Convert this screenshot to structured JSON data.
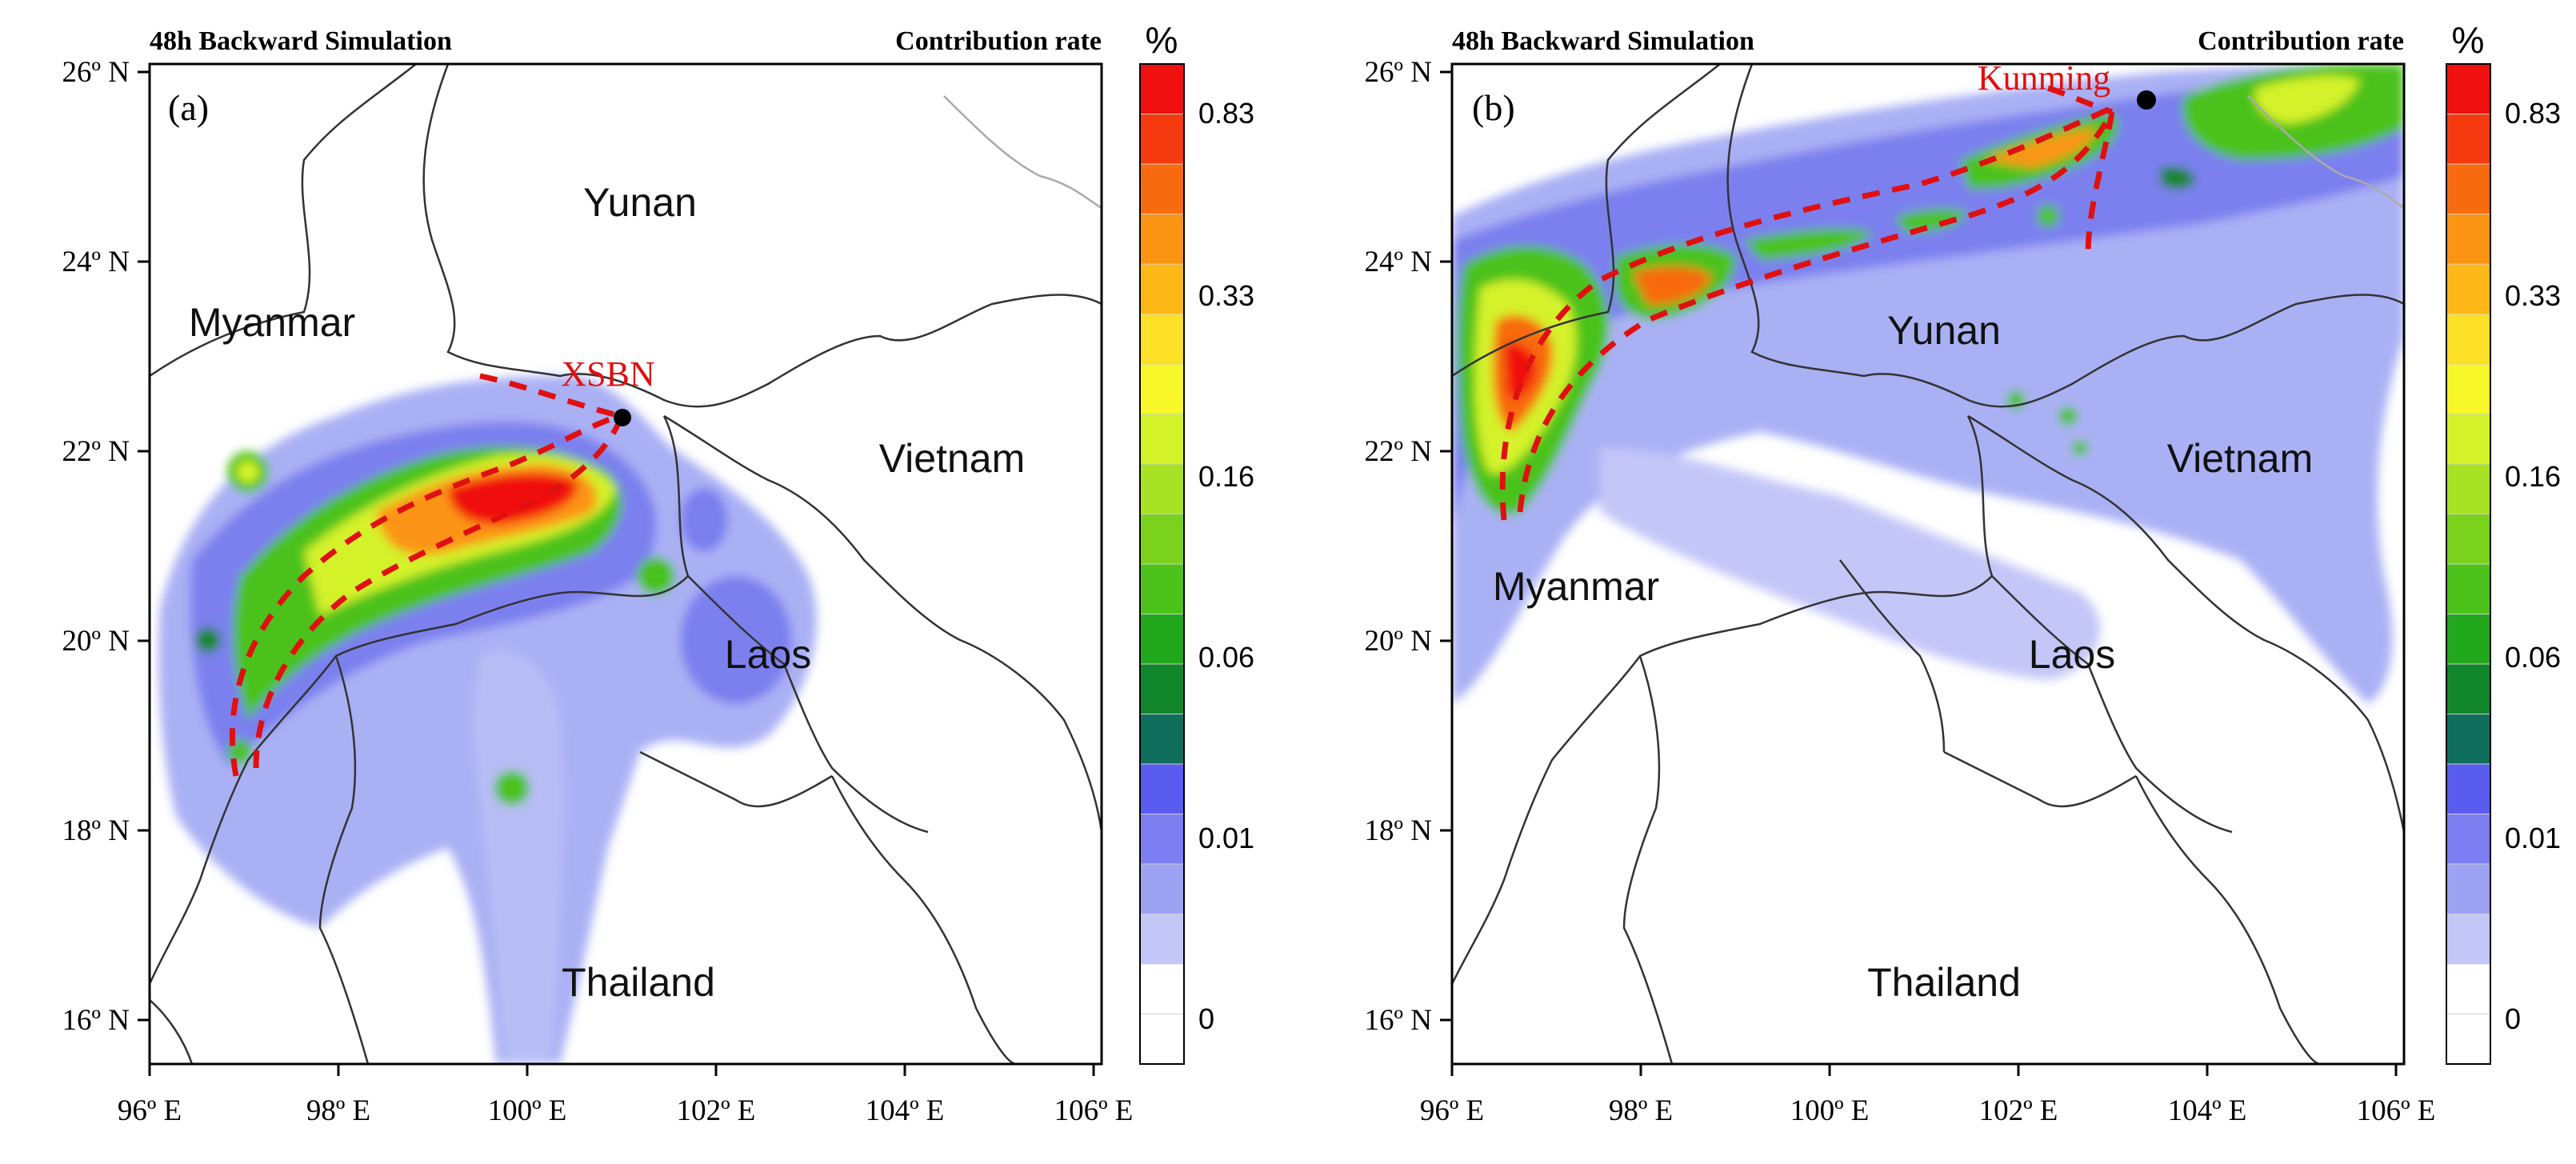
{
  "panels": [
    {
      "id": "a",
      "letter": "(a)",
      "header_left": "48h Backward Simulation",
      "header_right": "Contribution rate",
      "regions": [
        "Yunan",
        "Myanmar",
        "Vietnam",
        "Laos",
        "Thailand"
      ],
      "city": "XSBN"
    },
    {
      "id": "b",
      "letter": "(b)",
      "header_left": "48h Backward Simulation",
      "header_right": "Contribution rate",
      "regions": [
        "Yunan",
        "Myanmar",
        "Vietnam",
        "Laos",
        "Thailand"
      ],
      "city": "Kunming"
    }
  ],
  "axes": {
    "lat_ticks": [
      "26º N",
      "24º N",
      "22º N",
      "20º N",
      "18º N",
      "16º N"
    ],
    "lon_ticks": [
      "96º E",
      "98º E",
      "100º E",
      "102º E",
      "104º E",
      "106º E"
    ]
  },
  "colorbar": {
    "unit": "%",
    "labels": [
      "0.83",
      "0.33",
      "0.16",
      "0.06",
      "0.01",
      "0"
    ],
    "colors": [
      "#f01010",
      "#f43a0e",
      "#f86a10",
      "#fb9412",
      "#fdb818",
      "#fde028",
      "#f7f72a",
      "#d4f22a",
      "#a8e224",
      "#7ad21c",
      "#4cc21a",
      "#22a81c",
      "#12862a",
      "#0f6e5c",
      "#5a5cf0",
      "#7c7ef2",
      "#9ea2f2",
      "#c4c6f8",
      "#ffffff",
      "#ffffff"
    ]
  }
}
